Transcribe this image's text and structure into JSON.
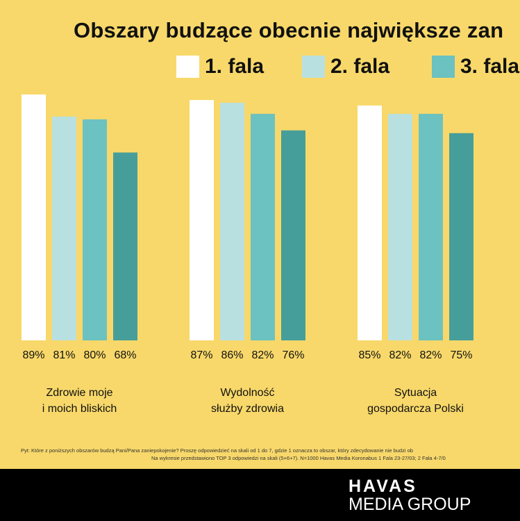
{
  "title": "Obszary budzące obecnie największe zan",
  "legend": [
    {
      "label": "1. fala",
      "color": "#ffffff"
    },
    {
      "label": "2. fala",
      "color": "#b9e0e0"
    },
    {
      "label": "3. fala",
      "color": "#6cc1c1"
    }
  ],
  "chart_data": {
    "type": "bar",
    "title": "Obszary budzące obecnie największe zan",
    "categories": [
      [
        "Zdrowie moje",
        "i moich bliskich"
      ],
      [
        "Wydolność",
        "służby zdrowia"
      ],
      [
        "Sytuacja",
        "gospodarcza Polski"
      ]
    ],
    "series": [
      {
        "name": "1. fala",
        "values": [
          89,
          87,
          85
        ],
        "color": "#ffffff"
      },
      {
        "name": "2. fala",
        "values": [
          81,
          86,
          82
        ],
        "color": "#b9e0e0"
      },
      {
        "name": "3. fala",
        "values": [
          80,
          82,
          82
        ],
        "color": "#6cc1c1"
      },
      {
        "values": [
          68,
          76,
          75
        ],
        "color": "#469e9a"
      }
    ],
    "value_labels": [
      [
        "89%",
        "81%",
        "80%",
        "68%"
      ],
      [
        "87%",
        "86%",
        "82%",
        "76%"
      ],
      [
        "85%",
        "82%",
        "82%",
        "75%"
      ]
    ],
    "ylim": [
      0,
      100
    ],
    "grid": false,
    "legend_position": "top"
  },
  "footnote": {
    "line1": "Pyt: Które z poniższych obszarów budzą Pani/Pana zaniepokojenie? Proszę odpowiedzieć na skali od 1 do 7, gdzie 1 oznacza to obszar, który zdecydowanie nie budzi ob",
    "line2": "Na wykresie przedstawiono TOP 3 odpowiedzi na skali (5+6+7). N=1000 Havas Media Koronabus 1 Fala 23-27/03; 2 Fala 4-7/0"
  },
  "logo": {
    "line1": "HAVAS",
    "line2": "MEDIA GROUP"
  }
}
